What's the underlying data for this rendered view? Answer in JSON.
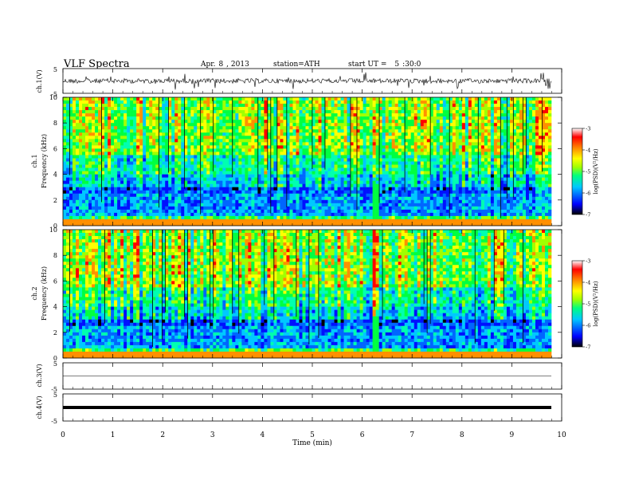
{
  "header": {
    "title": "VLF  Spectra",
    "date_month": "Apr.",
    "date_day": "8",
    "date_year": ", 2013",
    "station": "station=ATH",
    "start_label": "start  UT  =",
    "start_hour": "5",
    "start_min_sec": ":30:0"
  },
  "chart_data": [
    {
      "panel": "ch1-waveform",
      "type": "line",
      "ylabel": "ch.1(V)",
      "ylim": [
        -5,
        5
      ],
      "yticks": [
        "5",
        "-5"
      ],
      "color": "#000000"
    },
    {
      "panel": "ch1-spectrogram",
      "type": "heatmap",
      "ylabel_top": "ch.1",
      "ylabel": "Frequency  (kHz)",
      "ylim": [
        0,
        10
      ],
      "yticks": [
        "0",
        "2",
        "4",
        "6",
        "8",
        "10"
      ],
      "colorbar": {
        "label": "log(PSD)(V²/Hz)",
        "range": [
          -7,
          -3
        ],
        "ticks": [
          "-3",
          "-4",
          "-5",
          "-6",
          "-7"
        ],
        "colors": [
          "#000000",
          "#0000ff",
          "#00c8ff",
          "#00ff7f",
          "#a0ff00",
          "#ffff00",
          "#ff8000",
          "#ff0000",
          "#ffffff"
        ]
      }
    },
    {
      "panel": "ch2-spectrogram",
      "type": "heatmap",
      "ylabel_top": "ch.2",
      "ylabel": "Frequency  (kHz)",
      "ylim": [
        0,
        10
      ],
      "yticks": [
        "0",
        "2",
        "4",
        "6",
        "8",
        "10"
      ],
      "colorbar": {
        "label": "log(PSD)(V²/Hz)",
        "range": [
          -7,
          -3
        ],
        "ticks": [
          "-3",
          "-4",
          "-5",
          "-6",
          "-7"
        ]
      }
    },
    {
      "panel": "ch3-waveform",
      "type": "line",
      "ylabel": "ch.3(V)",
      "ylim": [
        -5,
        5
      ],
      "yticks": [
        "5",
        "-5"
      ]
    },
    {
      "panel": "ch4-waveform",
      "type": "line",
      "ylabel": "ch.4(V)",
      "ylim": [
        -5,
        5
      ],
      "yticks": [
        "5",
        "-5"
      ]
    },
    {
      "panel": "time-axis",
      "type": "axis",
      "xlabel": "Time  (min)",
      "xlim": [
        0,
        10
      ],
      "xticks": [
        "0",
        "1",
        "2",
        "3",
        "4",
        "5",
        "6",
        "7",
        "8",
        "9",
        "10"
      ]
    }
  ]
}
